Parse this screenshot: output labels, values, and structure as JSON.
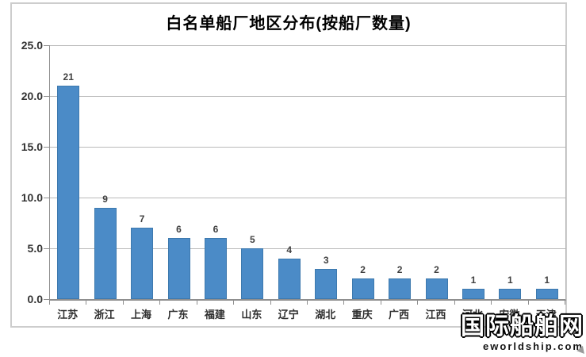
{
  "chart": {
    "title": "白名单船厂地区分布(按船厂数量)",
    "watermark_cn": "国际船舶网",
    "watermark_en": "eworldship.com"
  },
  "chart_data": {
    "type": "bar",
    "title": "白名单船厂地区分布(按船厂数量)",
    "categories": [
      "江苏",
      "浙江",
      "上海",
      "广东",
      "福建",
      "山东",
      "辽宁",
      "湖北",
      "重庆",
      "广西",
      "江西",
      "河北",
      "安徽",
      "天津"
    ],
    "values": [
      21,
      9,
      7,
      6,
      6,
      5,
      4,
      3,
      2,
      2,
      2,
      1,
      1,
      1
    ],
    "value_labels": [
      "21",
      "9",
      "7",
      "6",
      "6",
      "5",
      "4",
      "3",
      "2",
      "2",
      "2",
      "1",
      "1",
      "1"
    ],
    "xlabel": "",
    "ylabel": "",
    "ylim": [
      0,
      25
    ],
    "ytick_interval": 5,
    "ytick_labels": [
      "0.0",
      "5.0",
      "10.0",
      "15.0",
      "20.0",
      "25.0"
    ],
    "grid": true,
    "legend": false,
    "bar_color": "#4B8BC7",
    "value_labels_shown": true
  }
}
